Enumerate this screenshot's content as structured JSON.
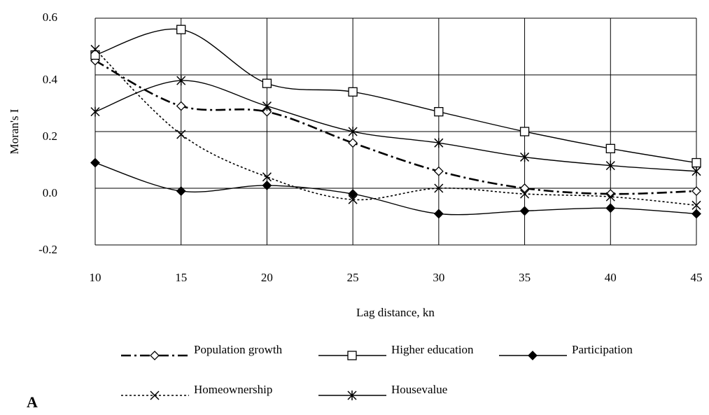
{
  "chart_data": {
    "type": "line",
    "y_label": "Moran's I",
    "x_label": "Lag distance, kn",
    "panel_label": "A",
    "x": [
      10,
      15,
      20,
      25,
      30,
      35,
      40,
      45
    ],
    "xlim": [
      10,
      45
    ],
    "xticks": [
      10,
      15,
      20,
      25,
      30,
      35,
      40,
      45
    ],
    "ylim": [
      -0.2,
      0.6
    ],
    "yticks": [
      -0.2,
      {
        "value": 0,
        "label": "0.0"
      },
      0.2,
      0.4,
      0.6
    ],
    "grid": true,
    "series": [
      {
        "name": "Population growth",
        "color": "#000000",
        "marker": "diamond-open",
        "dash": "dashdot",
        "values": [
          0.45,
          0.29,
          0.27,
          0.16,
          0.06,
          0.0,
          -0.02,
          -0.01
        ]
      },
      {
        "name": "Higher education",
        "color": "#000000",
        "marker": "square-open",
        "dash": "solid",
        "values": [
          0.47,
          0.56,
          0.37,
          0.34,
          0.27,
          0.2,
          0.14,
          0.09
        ]
      },
      {
        "name": "Participation",
        "color": "#000000",
        "marker": "diamond-filled",
        "dash": "solid",
        "values": [
          0.09,
          -0.01,
          0.01,
          -0.02,
          -0.09,
          -0.08,
          -0.07,
          -0.09
        ]
      },
      {
        "name": "Homeownership",
        "color": "#000000",
        "marker": "x",
        "dash": "dotted",
        "values": [
          0.49,
          0.19,
          0.04,
          -0.04,
          0.0,
          -0.02,
          -0.03,
          -0.06
        ]
      },
      {
        "name": "Housevalue",
        "color": "#000000",
        "marker": "asterisk",
        "dash": "solid",
        "values": [
          0.27,
          0.38,
          0.29,
          0.2,
          0.16,
          0.11,
          0.08,
          0.06
        ]
      }
    ]
  }
}
